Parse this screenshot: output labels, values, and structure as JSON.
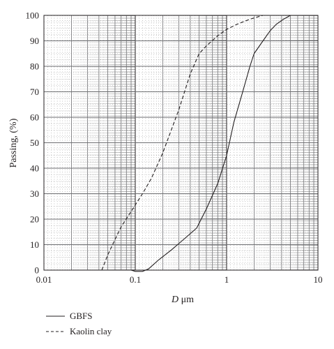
{
  "chart_data": {
    "type": "line",
    "xlabel_italic": "D",
    "xlabel_unit": " μm",
    "ylabel": "Passing, (%)",
    "xscale": "log",
    "xlim": [
      0.01,
      10
    ],
    "ylim": [
      0,
      100
    ],
    "x_ticks": [
      {
        "value": 0.01,
        "label": "0.01"
      },
      {
        "value": 0.1,
        "label": "0.1"
      },
      {
        "value": 1,
        "label": "1"
      },
      {
        "value": 10,
        "label": "10"
      }
    ],
    "y_ticks": [
      {
        "value": 0,
        "label": "0"
      },
      {
        "value": 10,
        "label": "10"
      },
      {
        "value": 20,
        "label": "20"
      },
      {
        "value": 30,
        "label": "30"
      },
      {
        "value": 40,
        "label": "40"
      },
      {
        "value": 50,
        "label": "50"
      },
      {
        "value": 60,
        "label": "60"
      },
      {
        "value": 70,
        "label": "70"
      },
      {
        "value": 80,
        "label": "80"
      },
      {
        "value": 90,
        "label": "90"
      },
      {
        "value": 100,
        "label": "100"
      }
    ],
    "grid": true,
    "legend_position": "bottom-left",
    "series": [
      {
        "name": "GBFS",
        "style": "solid",
        "color": "#231f20",
        "points": [
          [
            0.09,
            0
          ],
          [
            0.1,
            -0.5
          ],
          [
            0.12,
            -0.5
          ],
          [
            0.14,
            0.5
          ],
          [
            0.18,
            4
          ],
          [
            0.25,
            8
          ],
          [
            0.35,
            12.5
          ],
          [
            0.47,
            16.5
          ],
          [
            0.6,
            24
          ],
          [
            0.8,
            34
          ],
          [
            1.0,
            45
          ],
          [
            1.2,
            58
          ],
          [
            1.5,
            70
          ],
          [
            1.8,
            80
          ],
          [
            2.0,
            85
          ],
          [
            2.5,
            90
          ],
          [
            3.0,
            94
          ],
          [
            3.5,
            96.5
          ],
          [
            4.2,
            98.5
          ],
          [
            5.0,
            100
          ]
        ]
      },
      {
        "name": "Kaolin clay",
        "style": "dashed",
        "color": "#231f20",
        "points": [
          [
            0.043,
            0
          ],
          [
            0.05,
            6
          ],
          [
            0.06,
            12
          ],
          [
            0.07,
            17
          ],
          [
            0.09,
            23
          ],
          [
            0.12,
            30
          ],
          [
            0.15,
            36
          ],
          [
            0.2,
            46
          ],
          [
            0.3,
            63
          ],
          [
            0.4,
            77
          ],
          [
            0.5,
            85
          ],
          [
            0.6,
            88
          ],
          [
            0.8,
            92
          ],
          [
            1.0,
            94.5
          ],
          [
            1.3,
            96.5
          ],
          [
            1.8,
            98.5
          ],
          [
            2.5,
            100
          ],
          [
            4.5,
            100
          ]
        ]
      }
    ]
  }
}
